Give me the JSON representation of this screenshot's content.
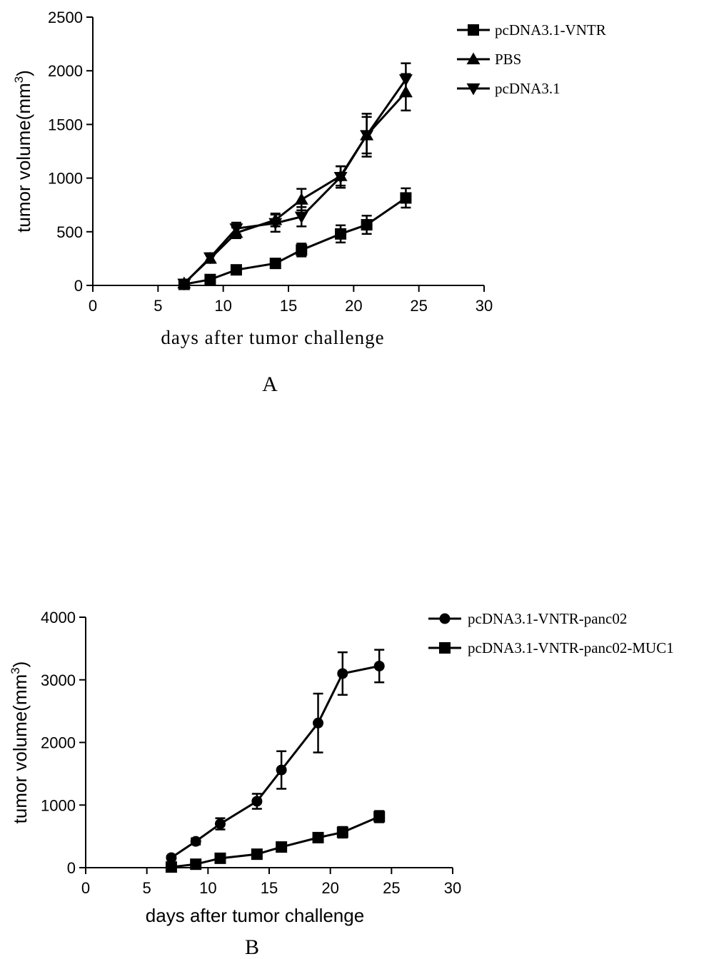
{
  "chart_data": [
    {
      "type": "line",
      "panel_label": "A",
      "xlabel": "days after tumor challenge",
      "ylabel": "tumor volume(mm",
      "ylabel_sup": "3",
      "ylabel_close": ")",
      "xlim": [
        0,
        30
      ],
      "ylim": [
        0,
        2500
      ],
      "xticks": [
        0,
        5,
        10,
        15,
        20,
        25,
        30
      ],
      "yticks": [
        0,
        500,
        1000,
        1500,
        2000,
        2500
      ],
      "legend_position": "top-right",
      "grid": false,
      "series": [
        {
          "name": "pcDNA3.1-VNTR",
          "marker": "square",
          "x": [
            7,
            9,
            11,
            14,
            16,
            19,
            21,
            24
          ],
          "y": [
            10,
            55,
            145,
            205,
            330,
            480,
            565,
            815
          ],
          "err": [
            5,
            15,
            20,
            25,
            60,
            80,
            85,
            90
          ]
        },
        {
          "name": "PBS",
          "marker": "triangle-up",
          "x": [
            7,
            9,
            11,
            14,
            16,
            19,
            21,
            24
          ],
          "y": [
            20,
            250,
            490,
            610,
            800,
            1020,
            1400,
            1800
          ],
          "err": [
            10,
            40,
            50,
            60,
            100,
            90,
            200,
            170
          ]
        },
        {
          "name": "pcDNA3.1",
          "marker": "triangle-down",
          "x": [
            7,
            9,
            11,
            14,
            16,
            19,
            21,
            24
          ],
          "y": [
            15,
            260,
            530,
            580,
            640,
            1010,
            1400,
            1920
          ],
          "err": [
            10,
            40,
            55,
            80,
            90,
            100,
            170,
            150
          ]
        }
      ]
    },
    {
      "type": "line",
      "panel_label": "B",
      "xlabel": "days after tumor challenge",
      "ylabel": "tumor volume(mm",
      "ylabel_sup": "3",
      "ylabel_close": ")",
      "xlim": [
        0,
        30
      ],
      "ylim": [
        0,
        4000
      ],
      "xticks": [
        0,
        5,
        10,
        15,
        20,
        25,
        30
      ],
      "yticks": [
        0,
        1000,
        2000,
        3000,
        4000
      ],
      "legend_position": "top-right",
      "grid": false,
      "series": [
        {
          "name": "pcDNA3.1-VNTR-panc02",
          "marker": "circle",
          "x": [
            7,
            9,
            11,
            14,
            16,
            19,
            21,
            24
          ],
          "y": [
            160,
            420,
            700,
            1060,
            1560,
            2310,
            3100,
            3220
          ],
          "err": [
            30,
            50,
            90,
            120,
            300,
            470,
            340,
            260
          ]
        },
        {
          "name": "pcDNA3.1-VNTR-panc02-MUC1",
          "marker": "square",
          "x": [
            7,
            9,
            11,
            14,
            16,
            19,
            21,
            24
          ],
          "y": [
            10,
            55,
            150,
            215,
            330,
            480,
            565,
            815
          ],
          "err": [
            5,
            15,
            20,
            25,
            40,
            60,
            85,
            90
          ]
        }
      ]
    }
  ]
}
